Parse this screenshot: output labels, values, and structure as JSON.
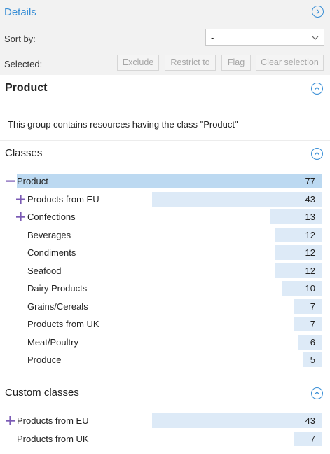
{
  "header": {
    "title": "Details",
    "sort_label": "Sort by:",
    "sort_value": "-",
    "selected_label": "Selected:",
    "actions": [
      "Exclude",
      "Restrict to",
      "Flag",
      "Clear selection"
    ]
  },
  "product": {
    "title": "Product",
    "description": "This group contains resources having the class \"Product\""
  },
  "classes": {
    "title": "Classes",
    "max": 77,
    "items": [
      {
        "label": "Product",
        "count": "77",
        "toggle": "minus",
        "selected": true
      },
      {
        "label": "Products from EU",
        "count": "43",
        "toggle": "plus"
      },
      {
        "label": "Confections",
        "count": "13",
        "toggle": "plus"
      },
      {
        "label": "Beverages",
        "count": "12",
        "toggle": "none"
      },
      {
        "label": "Condiments",
        "count": "12",
        "toggle": "none"
      },
      {
        "label": "Seafood",
        "count": "12",
        "toggle": "none"
      },
      {
        "label": "Dairy Products",
        "count": "10",
        "toggle": "none"
      },
      {
        "label": "Grains/Cereals",
        "count": "7",
        "toggle": "none"
      },
      {
        "label": "Products from UK",
        "count": "7",
        "toggle": "none"
      },
      {
        "label": "Meat/Poultry",
        "count": "6",
        "toggle": "none"
      },
      {
        "label": "Produce",
        "count": "5",
        "toggle": "none"
      }
    ]
  },
  "custom_classes": {
    "title": "Custom classes",
    "items": [
      {
        "label": "Products from EU",
        "count": "43",
        "toggle": "plus"
      },
      {
        "label": "Products from UK",
        "count": "7",
        "toggle": "none"
      }
    ]
  },
  "colors": {
    "accent": "#3a8fd6",
    "toggle": "#7b5bb5",
    "bar": "#ddeaf7",
    "bar_selected": "#bcd9f1"
  }
}
